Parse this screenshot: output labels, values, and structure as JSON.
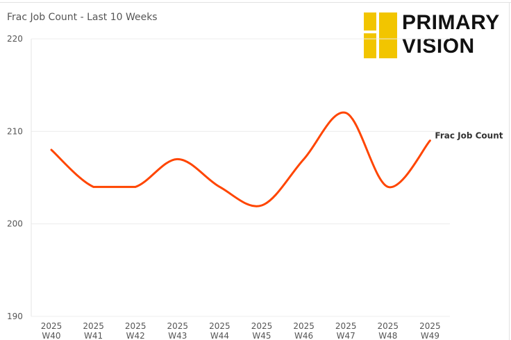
{
  "header": {
    "chart_title": "Frac Job Count - Last 10 Weeks"
  },
  "logo": {
    "line1": "PRIMARY",
    "line2": "VISION",
    "mark_color": "#f2c500"
  },
  "chart_data": {
    "type": "line",
    "title": "Frac Job Count - Last 10 Weeks",
    "xlabel": "",
    "ylabel": "",
    "categories": [
      "2025 W40",
      "2025 W41",
      "2025 W42",
      "2025 W43",
      "2025 W44",
      "2025 W45",
      "2025 W46",
      "2025 W47",
      "2025 W48",
      "2025 W49"
    ],
    "category_lines": [
      [
        "2025",
        "W40"
      ],
      [
        "2025",
        "W41"
      ],
      [
        "2025",
        "W42"
      ],
      [
        "2025",
        "W43"
      ],
      [
        "2025",
        "W44"
      ],
      [
        "2025",
        "W45"
      ],
      [
        "2025",
        "W46"
      ],
      [
        "2025",
        "W47"
      ],
      [
        "2025",
        "W48"
      ],
      [
        "2025",
        "W49"
      ]
    ],
    "series": [
      {
        "name": "Frac Job Count",
        "values": [
          208,
          204,
          204,
          207,
          204,
          202,
          207,
          212,
          204,
          209
        ],
        "color": "#ff4500"
      }
    ],
    "ylim": [
      190,
      220
    ],
    "yticks": [
      190,
      200,
      210,
      220
    ],
    "grid": true,
    "legend": "series label at end of line"
  }
}
